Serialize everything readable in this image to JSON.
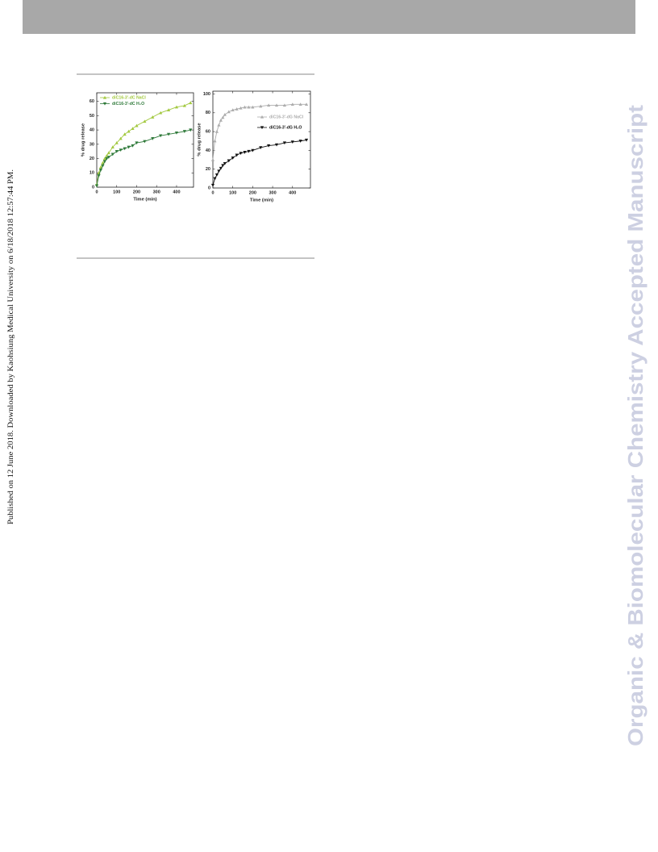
{
  "side_note": "Published on 12 June 2018. Downloaded by Kaohsiung Medical University on 6/18/2018 12:57:44 PM.",
  "watermark": "Organic & Biomolecular Chemistry Accepted Manuscript",
  "chart_data": [
    {
      "type": "scatter",
      "xlabel": "Time (min)",
      "ylabel": "% drug release",
      "x": [
        0,
        10,
        20,
        30,
        40,
        50,
        60,
        80,
        100,
        120,
        140,
        160,
        180,
        200,
        240,
        280,
        320,
        360,
        400,
        440,
        470
      ],
      "xlim": [
        0,
        485
      ],
      "xticks": [
        0,
        100,
        200,
        300,
        400
      ],
      "ylim": [
        0,
        66
      ],
      "yticks": [
        0,
        10,
        20,
        30,
        40,
        50,
        60
      ],
      "legend": "upper left",
      "series": [
        {
          "name": "diC16-3'-dC NaCl",
          "color": "#a3c940",
          "marker": "triangle-up",
          "values": [
            2,
            10,
            14,
            17,
            20,
            22,
            24,
            28,
            31,
            34,
            37,
            39,
            41,
            43,
            46,
            49,
            52,
            54,
            56,
            57,
            59
          ]
        },
        {
          "name": "diC16-3'-dC H₂O",
          "color": "#2f7a3a",
          "marker": "triangle-down",
          "values": [
            1,
            8,
            12,
            15,
            18,
            20,
            21,
            23,
            25,
            26,
            27,
            28,
            29,
            31,
            32,
            34,
            36,
            37,
            38,
            39,
            40
          ]
        }
      ]
    },
    {
      "type": "scatter",
      "xlabel": "Time (min)",
      "ylabel": "% drug release",
      "x": [
        0,
        10,
        20,
        30,
        40,
        50,
        60,
        80,
        100,
        120,
        140,
        160,
        180,
        200,
        240,
        280,
        320,
        360,
        400,
        440,
        470
      ],
      "xlim": [
        0,
        490
      ],
      "xticks": [
        0,
        100,
        200,
        300,
        400
      ],
      "ylim": [
        0,
        103
      ],
      "yticks": [
        0,
        20,
        40,
        60,
        80,
        100
      ],
      "legend": "upper right",
      "series": [
        {
          "name": "diC16-3'-dG NaCl",
          "color": "#adadad",
          "marker": "triangle-up",
          "values": [
            30,
            50,
            60,
            67,
            72,
            75,
            78,
            81,
            83,
            84,
            85,
            86,
            86,
            86,
            87,
            88,
            88,
            88,
            89,
            89,
            89
          ]
        },
        {
          "name": "diC16-3'-dG H₂O",
          "color": "#111111",
          "marker": "triangle-down",
          "values": [
            3,
            10,
            14,
            18,
            21,
            24,
            26,
            29,
            32,
            35,
            37,
            38,
            39,
            40,
            43,
            45,
            46,
            48,
            49,
            50,
            51
          ]
        }
      ]
    }
  ]
}
